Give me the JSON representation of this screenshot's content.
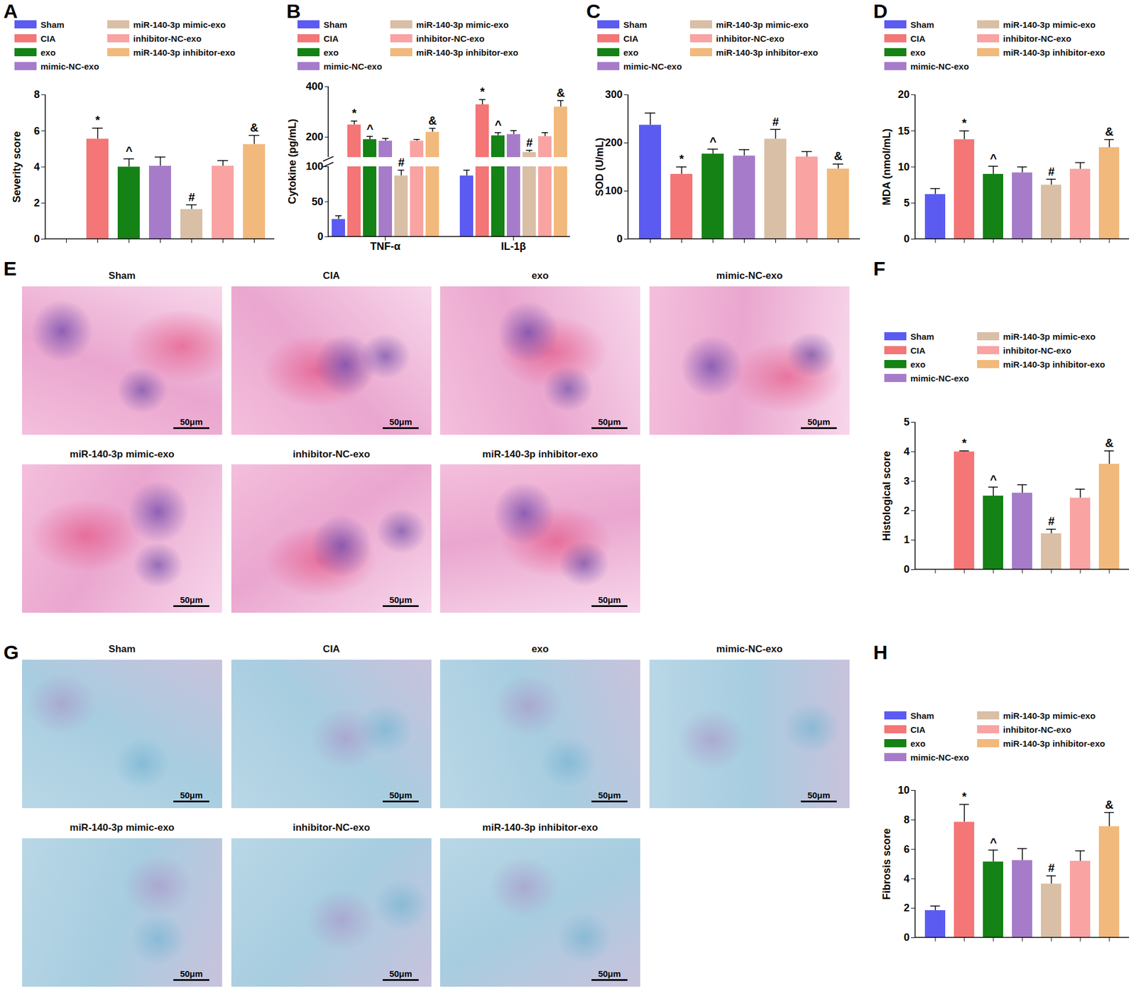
{
  "chart_data": [
    {
      "panel_label": "A",
      "type": "bar",
      "categories": [
        "Sham",
        "CIA",
        "exo",
        "mimic-NC-exo",
        "miR-140-3p mimic-exo",
        "inhibitor-NC-exo",
        "miR-140-3p inhibitor-exo"
      ],
      "values": [
        0,
        5.55,
        4.0,
        4.05,
        1.65,
        4.05,
        5.25
      ],
      "errors": [
        0,
        0.6,
        0.45,
        0.5,
        0.25,
        0.3,
        0.5
      ],
      "annotations": [
        null,
        "*",
        "^",
        null,
        "#",
        null,
        "&"
      ],
      "colors": [
        "#5b5bf2",
        "#f47676",
        "#148214",
        "#a67cca",
        "#d9bfa5",
        "#f9a3a3",
        "#f2b97c"
      ],
      "y_label": "Severity score",
      "ylim": [
        0,
        8
      ],
      "yticks": [
        0,
        2,
        4,
        6,
        8
      ],
      "legend": "top",
      "tick_labels": "y"
    },
    {
      "panel_label": "B",
      "type": "bar",
      "categories": [
        "TNF-α",
        "IL-1β"
      ],
      "series": [
        {
          "name": "Sham",
          "color": "#5b5bf2",
          "values": [
            25,
            87
          ],
          "errors": [
            5,
            8
          ],
          "annotations": [
            null,
            null
          ]
        },
        {
          "name": "CIA",
          "color": "#f47676",
          "values": [
            249,
            329
          ],
          "errors": [
            15,
            20
          ],
          "annotations": [
            "*",
            "*"
          ]
        },
        {
          "name": "exo",
          "color": "#148214",
          "values": [
            191,
            206
          ],
          "errors": [
            12,
            12
          ],
          "annotations": [
            "^",
            "^"
          ]
        },
        {
          "name": "mimic-NC-exo",
          "color": "#a67cca",
          "values": [
            185,
            211
          ],
          "errors": [
            10,
            15
          ],
          "annotations": [
            null,
            null
          ]
        },
        {
          "name": "miR-140-3p mimic-exo",
          "color": "#d9bfa5",
          "values": [
            87,
            140
          ],
          "errors": [
            8,
            8
          ],
          "annotations": [
            "#",
            "#"
          ]
        },
        {
          "name": "inhibitor-NC-exo",
          "color": "#f9a3a3",
          "values": [
            185,
            203
          ],
          "errors": [
            6,
            15
          ],
          "annotations": [
            null,
            null
          ]
        },
        {
          "name": "miR-140-3p inhibitor-exo",
          "color": "#f2b97c",
          "values": [
            220,
            320
          ],
          "errors": [
            15,
            25
          ],
          "annotations": [
            "&",
            "&"
          ]
        }
      ],
      "y_label": "Cytokine (pg/mL)",
      "ylim": [
        0,
        400
      ],
      "yticks": [
        0,
        50,
        100,
        200,
        400
      ],
      "axis_break": [
        100,
        120
      ],
      "legend": "top"
    },
    {
      "panel_label": "C",
      "type": "bar",
      "categories": [
        "Sham",
        "CIA",
        "exo",
        "mimic-NC-exo",
        "miR-140-3p mimic-exo",
        "inhibitor-NC-exo",
        "miR-140-3p inhibitor-exo"
      ],
      "values": [
        237,
        135,
        177,
        173,
        208,
        171,
        146
      ],
      "errors": [
        25,
        15,
        10,
        13,
        20,
        11,
        10
      ],
      "annotations": [
        null,
        "*",
        "^",
        null,
        "#",
        null,
        "&"
      ],
      "colors": [
        "#5b5bf2",
        "#f47676",
        "#148214",
        "#a67cca",
        "#d9bfa5",
        "#f9a3a3",
        "#f2b97c"
      ],
      "y_label": "SOD (U/mL)",
      "ylim": [
        0,
        300
      ],
      "yticks": [
        0,
        100,
        200,
        300
      ],
      "legend": "top",
      "tick_labels": "y"
    },
    {
      "panel_label": "D",
      "type": "bar",
      "categories": [
        "Sham",
        "CIA",
        "exo",
        "mimic-NC-exo",
        "miR-140-3p mimic-exo",
        "inhibitor-NC-exo",
        "miR-140-3p inhibitor-exo"
      ],
      "values": [
        6.2,
        13.8,
        9.0,
        9.2,
        7.5,
        9.7,
        12.7
      ],
      "errors": [
        0.8,
        1.2,
        1.1,
        0.8,
        0.8,
        0.9,
        1.1
      ],
      "annotations": [
        null,
        "*",
        "^",
        null,
        "#",
        null,
        "&"
      ],
      "colors": [
        "#5b5bf2",
        "#f47676",
        "#148214",
        "#a67cca",
        "#d9bfa5",
        "#f9a3a3",
        "#f2b97c"
      ],
      "y_label": "MDA (nmol/mL)",
      "ylim": [
        0,
        20
      ],
      "yticks": [
        0,
        5,
        10,
        15,
        20
      ],
      "legend": "top",
      "tick_labels": "y"
    },
    {
      "panel_label": "F",
      "type": "bar",
      "categories": [
        "Sham",
        "CIA",
        "exo",
        "mimic-NC-exo",
        "miR-140-3p mimic-exo",
        "inhibitor-NC-exo",
        "miR-140-3p inhibitor-exo"
      ],
      "values": [
        0,
        4.0,
        2.5,
        2.6,
        1.22,
        2.43,
        3.58
      ],
      "errors": [
        0,
        0.03,
        0.3,
        0.28,
        0.15,
        0.3,
        0.45
      ],
      "annotations": [
        null,
        "*",
        "^",
        null,
        "#",
        null,
        "&"
      ],
      "colors": [
        "#5b5bf2",
        "#f47676",
        "#148214",
        "#a67cca",
        "#d9bfa5",
        "#f9a3a3",
        "#f2b97c"
      ],
      "y_label": "Histological score",
      "ylim": [
        0,
        5
      ],
      "yticks": [
        0,
        1,
        2,
        3,
        4,
        5
      ],
      "legend": "top",
      "tick_labels": "y"
    },
    {
      "panel_label": "H",
      "type": "bar",
      "categories": [
        "Sham",
        "CIA",
        "exo",
        "mimic-NC-exo",
        "miR-140-3p mimic-exo",
        "inhibitor-NC-exo",
        "miR-140-3p inhibitor-exo"
      ],
      "values": [
        1.85,
        7.85,
        5.15,
        5.25,
        3.65,
        5.2,
        7.55
      ],
      "errors": [
        0.3,
        1.2,
        0.8,
        0.8,
        0.55,
        0.7,
        0.95
      ],
      "annotations": [
        null,
        "*",
        "^",
        null,
        "#",
        null,
        "&"
      ],
      "colors": [
        "#5b5bf2",
        "#f47676",
        "#148214",
        "#a67cca",
        "#d9bfa5",
        "#f9a3a3",
        "#f2b97c"
      ],
      "y_label": "Fibrosis score",
      "ylim": [
        0,
        10
      ],
      "yticks": [
        0,
        2,
        4,
        6,
        8,
        10
      ],
      "legend": "top",
      "tick_labels": "y"
    }
  ],
  "image_panels": [
    {
      "panel_label": "E",
      "titles": [
        "Sham",
        "CIA",
        "exo",
        "mimic-NC-exo",
        "miR-140-3p mimic-exo",
        "inhibitor-NC-exo",
        "miR-140-3p inhibitor-exo"
      ],
      "scale_bar": "50μm"
    },
    {
      "panel_label": "G",
      "titles": [
        "Sham",
        "CIA",
        "exo",
        "mimic-NC-exo",
        "miR-140-3p mimic-exo",
        "inhibitor-NC-exo",
        "miR-140-3p inhibitor-exo"
      ],
      "scale_bar": "50μm"
    }
  ]
}
